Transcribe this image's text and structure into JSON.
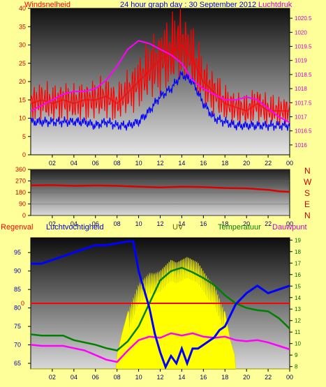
{
  "header": {
    "left_title": "Windsnelheid",
    "center_title": "24 hour graph day : 30 September 2012",
    "right_title": "Luchtdruk"
  },
  "legend2": {
    "regenval": "Regenval",
    "luchtvochtigheid": "Luchtvochtigheid",
    "uv": "UV",
    "temperatuur": "Temperatuur",
    "dauwpunt": "Dauwpunt"
  },
  "direction_labels": [
    "N",
    "W",
    "S",
    "E",
    "N"
  ],
  "colors": {
    "background": "#ffff99",
    "wind_gust": "#ff0000",
    "wind_avg": "#0000ff",
    "pressure": "#ff00ff",
    "direction": "#dd0000",
    "humidity": "#0000ff",
    "uv_fill": "#ffff00",
    "temperature": "#008000",
    "dewpoint": "#ff00ff",
    "rain": "#ff0000"
  },
  "chart_data": [
    {
      "type": "line",
      "id": "wind_pressure",
      "x_ticks": [
        "02",
        "04",
        "06",
        "08",
        "10",
        "12",
        "14",
        "16",
        "18",
        "20",
        "22",
        "00"
      ],
      "xlim_hours": [
        0,
        24
      ],
      "ylim_left": [
        0,
        40
      ],
      "left_ticks": [
        0,
        5,
        10,
        15,
        20,
        25,
        30,
        35,
        40
      ],
      "ylim_right": [
        1015.65,
        1020.85
      ],
      "right_ticks": [
        "1016",
        "1016.5",
        "1017",
        "1017.5",
        "1018",
        "1018.5",
        "1019",
        "1019.5",
        "1020",
        "1020.5"
      ],
      "series": [
        {
          "name": "Windsnelheid",
          "role": "gust",
          "x": [
            0,
            1,
            2,
            3,
            4,
            5,
            6,
            7,
            8,
            9,
            10,
            11,
            12,
            13,
            14,
            15,
            16,
            17,
            18,
            19,
            20,
            21,
            22,
            23,
            24
          ],
          "values": [
            14,
            15,
            14,
            15,
            14,
            15,
            15,
            16,
            14,
            17,
            20,
            23,
            26,
            28,
            30,
            26,
            20,
            17,
            14,
            13,
            12,
            14,
            12,
            12,
            12
          ]
        },
        {
          "name": "Windsnelheid",
          "role": "average",
          "x": [
            0,
            1,
            2,
            3,
            4,
            5,
            6,
            7,
            8,
            9,
            10,
            11,
            12,
            13,
            14,
            15,
            16,
            17,
            18,
            19,
            20,
            21,
            22,
            23,
            24
          ],
          "values": [
            9,
            9,
            9,
            9,
            9,
            9,
            8,
            9,
            8,
            8,
            9,
            12,
            16,
            18,
            22,
            20,
            14,
            10,
            9,
            8,
            8,
            8,
            8,
            8,
            8
          ]
        },
        {
          "name": "Luchtdruk",
          "x": [
            0,
            1,
            2,
            3,
            4,
            5,
            6,
            7,
            8,
            9,
            10,
            11,
            12,
            13,
            14,
            15,
            16,
            17,
            18,
            19,
            20,
            21,
            22,
            23,
            24
          ],
          "values": [
            1017.2,
            1017.4,
            1017.6,
            1017.8,
            1017.9,
            1017.9,
            1018.0,
            1018.3,
            1018.8,
            1019.4,
            1019.7,
            1019.6,
            1019.4,
            1019.2,
            1018.9,
            1018.3,
            1018.0,
            1017.8,
            1017.6,
            1017.6,
            1017.7,
            1017.6,
            1017.3,
            1017.0,
            1016.8
          ]
        }
      ]
    },
    {
      "type": "line",
      "id": "wind_direction",
      "x_ticks": [
        "02",
        "04",
        "06",
        "08",
        "10",
        "12",
        "14",
        "16",
        "18",
        "20",
        "22",
        "00"
      ],
      "ylim": [
        0,
        360
      ],
      "y_ticks": [
        0,
        90,
        180,
        270,
        360
      ],
      "series": [
        {
          "name": "direction",
          "x": [
            0,
            2,
            4,
            6,
            8,
            10,
            12,
            14,
            16,
            18,
            20,
            22,
            23,
            24
          ],
          "values": [
            235,
            238,
            232,
            235,
            232,
            225,
            220,
            225,
            222,
            215,
            212,
            200,
            190,
            185
          ]
        }
      ]
    },
    {
      "type": "line",
      "id": "humidity_temp_uv",
      "x_ticks": [
        "02",
        "04",
        "06",
        "08",
        "10",
        "12",
        "14",
        "16",
        "18",
        "20",
        "22",
        "00"
      ],
      "ylim_left": [
        63.5,
        99
      ],
      "left_ticks": [
        65,
        70,
        75,
        80,
        85,
        90,
        95
      ],
      "ylim_right": [
        7.8,
        19.2
      ],
      "right_ticks": [
        8,
        9,
        10,
        11,
        12,
        13,
        14,
        15,
        16,
        17,
        18,
        19
      ],
      "rain_line_value": 0,
      "series": [
        {
          "name": "Luchtvochtigheid",
          "x": [
            0,
            1,
            2,
            3,
            4,
            5,
            6,
            7,
            8,
            9,
            9.5,
            10,
            10.5,
            11,
            11.5,
            12,
            12.5,
            13,
            13.5,
            14,
            14.5,
            15,
            15.5,
            16,
            16.5,
            17,
            17.5,
            18,
            18.5,
            19,
            20,
            21,
            22,
            23,
            24
          ],
          "values": [
            92,
            92,
            93,
            94,
            95,
            96,
            97,
            97,
            97.5,
            98,
            98,
            90,
            85,
            80,
            73,
            68,
            64,
            67,
            65,
            69,
            65,
            69,
            69,
            70,
            71,
            72,
            74,
            75,
            78,
            81,
            84,
            86,
            84,
            85,
            86
          ]
        },
        {
          "name": "Temperatuur",
          "x": [
            0,
            1,
            2,
            3,
            4,
            5,
            6,
            7,
            8,
            9,
            10,
            11,
            12,
            13,
            14,
            15,
            16,
            17,
            18,
            19,
            20,
            21,
            22,
            23,
            24
          ],
          "values": [
            10.8,
            10.7,
            10.7,
            10.7,
            10.3,
            10.1,
            9.9,
            9.6,
            9.4,
            10.2,
            11.5,
            13.5,
            15.5,
            16.3,
            16.6,
            16.2,
            15.7,
            15.1,
            14.2,
            13.5,
            13.1,
            12.9,
            12.8,
            12.2,
            11.3
          ]
        },
        {
          "name": "Dauwpunt",
          "x": [
            0,
            1,
            2,
            3,
            4,
            5,
            6,
            7,
            8,
            9,
            10,
            11,
            12,
            13,
            14,
            15,
            16,
            17,
            18,
            19,
            20,
            21,
            22,
            23,
            24
          ],
          "values": [
            9.9,
            9.8,
            9.8,
            9.8,
            9.6,
            9.4,
            9.0,
            8.6,
            8.4,
            9.4,
            10.3,
            10.6,
            10.5,
            10.9,
            10.7,
            10.9,
            10.6,
            10.5,
            10.6,
            10.3,
            10.2,
            10.3,
            10.1,
            9.8,
            9.5
          ]
        },
        {
          "name": "UV",
          "role": "area",
          "x": [
            0,
            7.9,
            8.0,
            8.5,
            9,
            9.5,
            10,
            10.5,
            11,
            11.5,
            12,
            12.5,
            13,
            13.5,
            14,
            14.5,
            15,
            15.5,
            16,
            16.5,
            17,
            17.5,
            18,
            18.5,
            18.9,
            19.0,
            24
          ],
          "values": [
            0,
            0,
            0.5,
            1.3,
            2.0,
            2.5,
            3.0,
            3.2,
            3.4,
            3.4,
            3.5,
            3.7,
            3.9,
            3.8,
            3.9,
            4.0,
            3.9,
            3.8,
            3.5,
            3.2,
            3.0,
            2.5,
            2.0,
            1.0,
            0.5,
            0,
            0
          ],
          "ylim": [
            0,
            4.6
          ]
        }
      ]
    }
  ]
}
